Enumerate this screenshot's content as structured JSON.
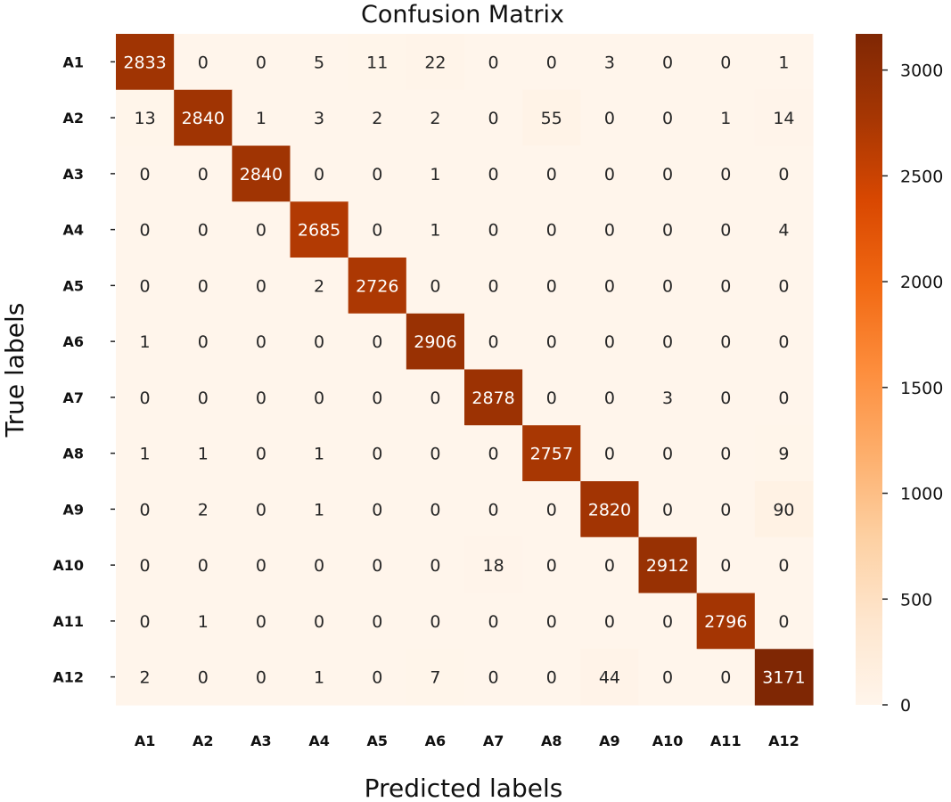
{
  "chart_data": {
    "type": "heatmap",
    "title": "Confusion Matrix",
    "xlabel": "Predicted labels",
    "ylabel": "True labels",
    "x_categories": [
      "A1",
      "A2",
      "A3",
      "A4",
      "A5",
      "A6",
      "A7",
      "A8",
      "A9",
      "A10",
      "A11",
      "A12"
    ],
    "y_categories": [
      "A1",
      "A2",
      "A3",
      "A4",
      "A5",
      "A6",
      "A7",
      "A8",
      "A9",
      "A10",
      "A11",
      "A12"
    ],
    "values": [
      [
        2833,
        0,
        0,
        5,
        11,
        22,
        0,
        0,
        3,
        0,
        0,
        1
      ],
      [
        13,
        2840,
        1,
        3,
        2,
        2,
        0,
        55,
        0,
        0,
        1,
        14
      ],
      [
        0,
        0,
        2840,
        0,
        0,
        1,
        0,
        0,
        0,
        0,
        0,
        0
      ],
      [
        0,
        0,
        0,
        2685,
        0,
        1,
        0,
        0,
        0,
        0,
        0,
        4
      ],
      [
        0,
        0,
        0,
        2,
        2726,
        0,
        0,
        0,
        0,
        0,
        0,
        0
      ],
      [
        1,
        0,
        0,
        0,
        0,
        2906,
        0,
        0,
        0,
        0,
        0,
        0
      ],
      [
        0,
        0,
        0,
        0,
        0,
        0,
        2878,
        0,
        0,
        3,
        0,
        0
      ],
      [
        1,
        1,
        0,
        1,
        0,
        0,
        0,
        2757,
        0,
        0,
        0,
        9
      ],
      [
        0,
        2,
        0,
        1,
        0,
        0,
        0,
        0,
        2820,
        0,
        0,
        90
      ],
      [
        0,
        0,
        0,
        0,
        0,
        0,
        18,
        0,
        0,
        2912,
        0,
        0
      ],
      [
        0,
        1,
        0,
        0,
        0,
        0,
        0,
        0,
        0,
        0,
        2796,
        0
      ],
      [
        2,
        0,
        0,
        1,
        0,
        7,
        0,
        0,
        44,
        0,
        0,
        3171
      ]
    ],
    "colorbar": {
      "colormap": "Oranges",
      "range": [
        0,
        3171
      ],
      "ticks": [
        0,
        500,
        1000,
        1500,
        2000,
        2500,
        3000
      ],
      "tick_labels": [
        "0",
        "500",
        "1000",
        "1500",
        "2000",
        "2500",
        "3000"
      ]
    }
  }
}
